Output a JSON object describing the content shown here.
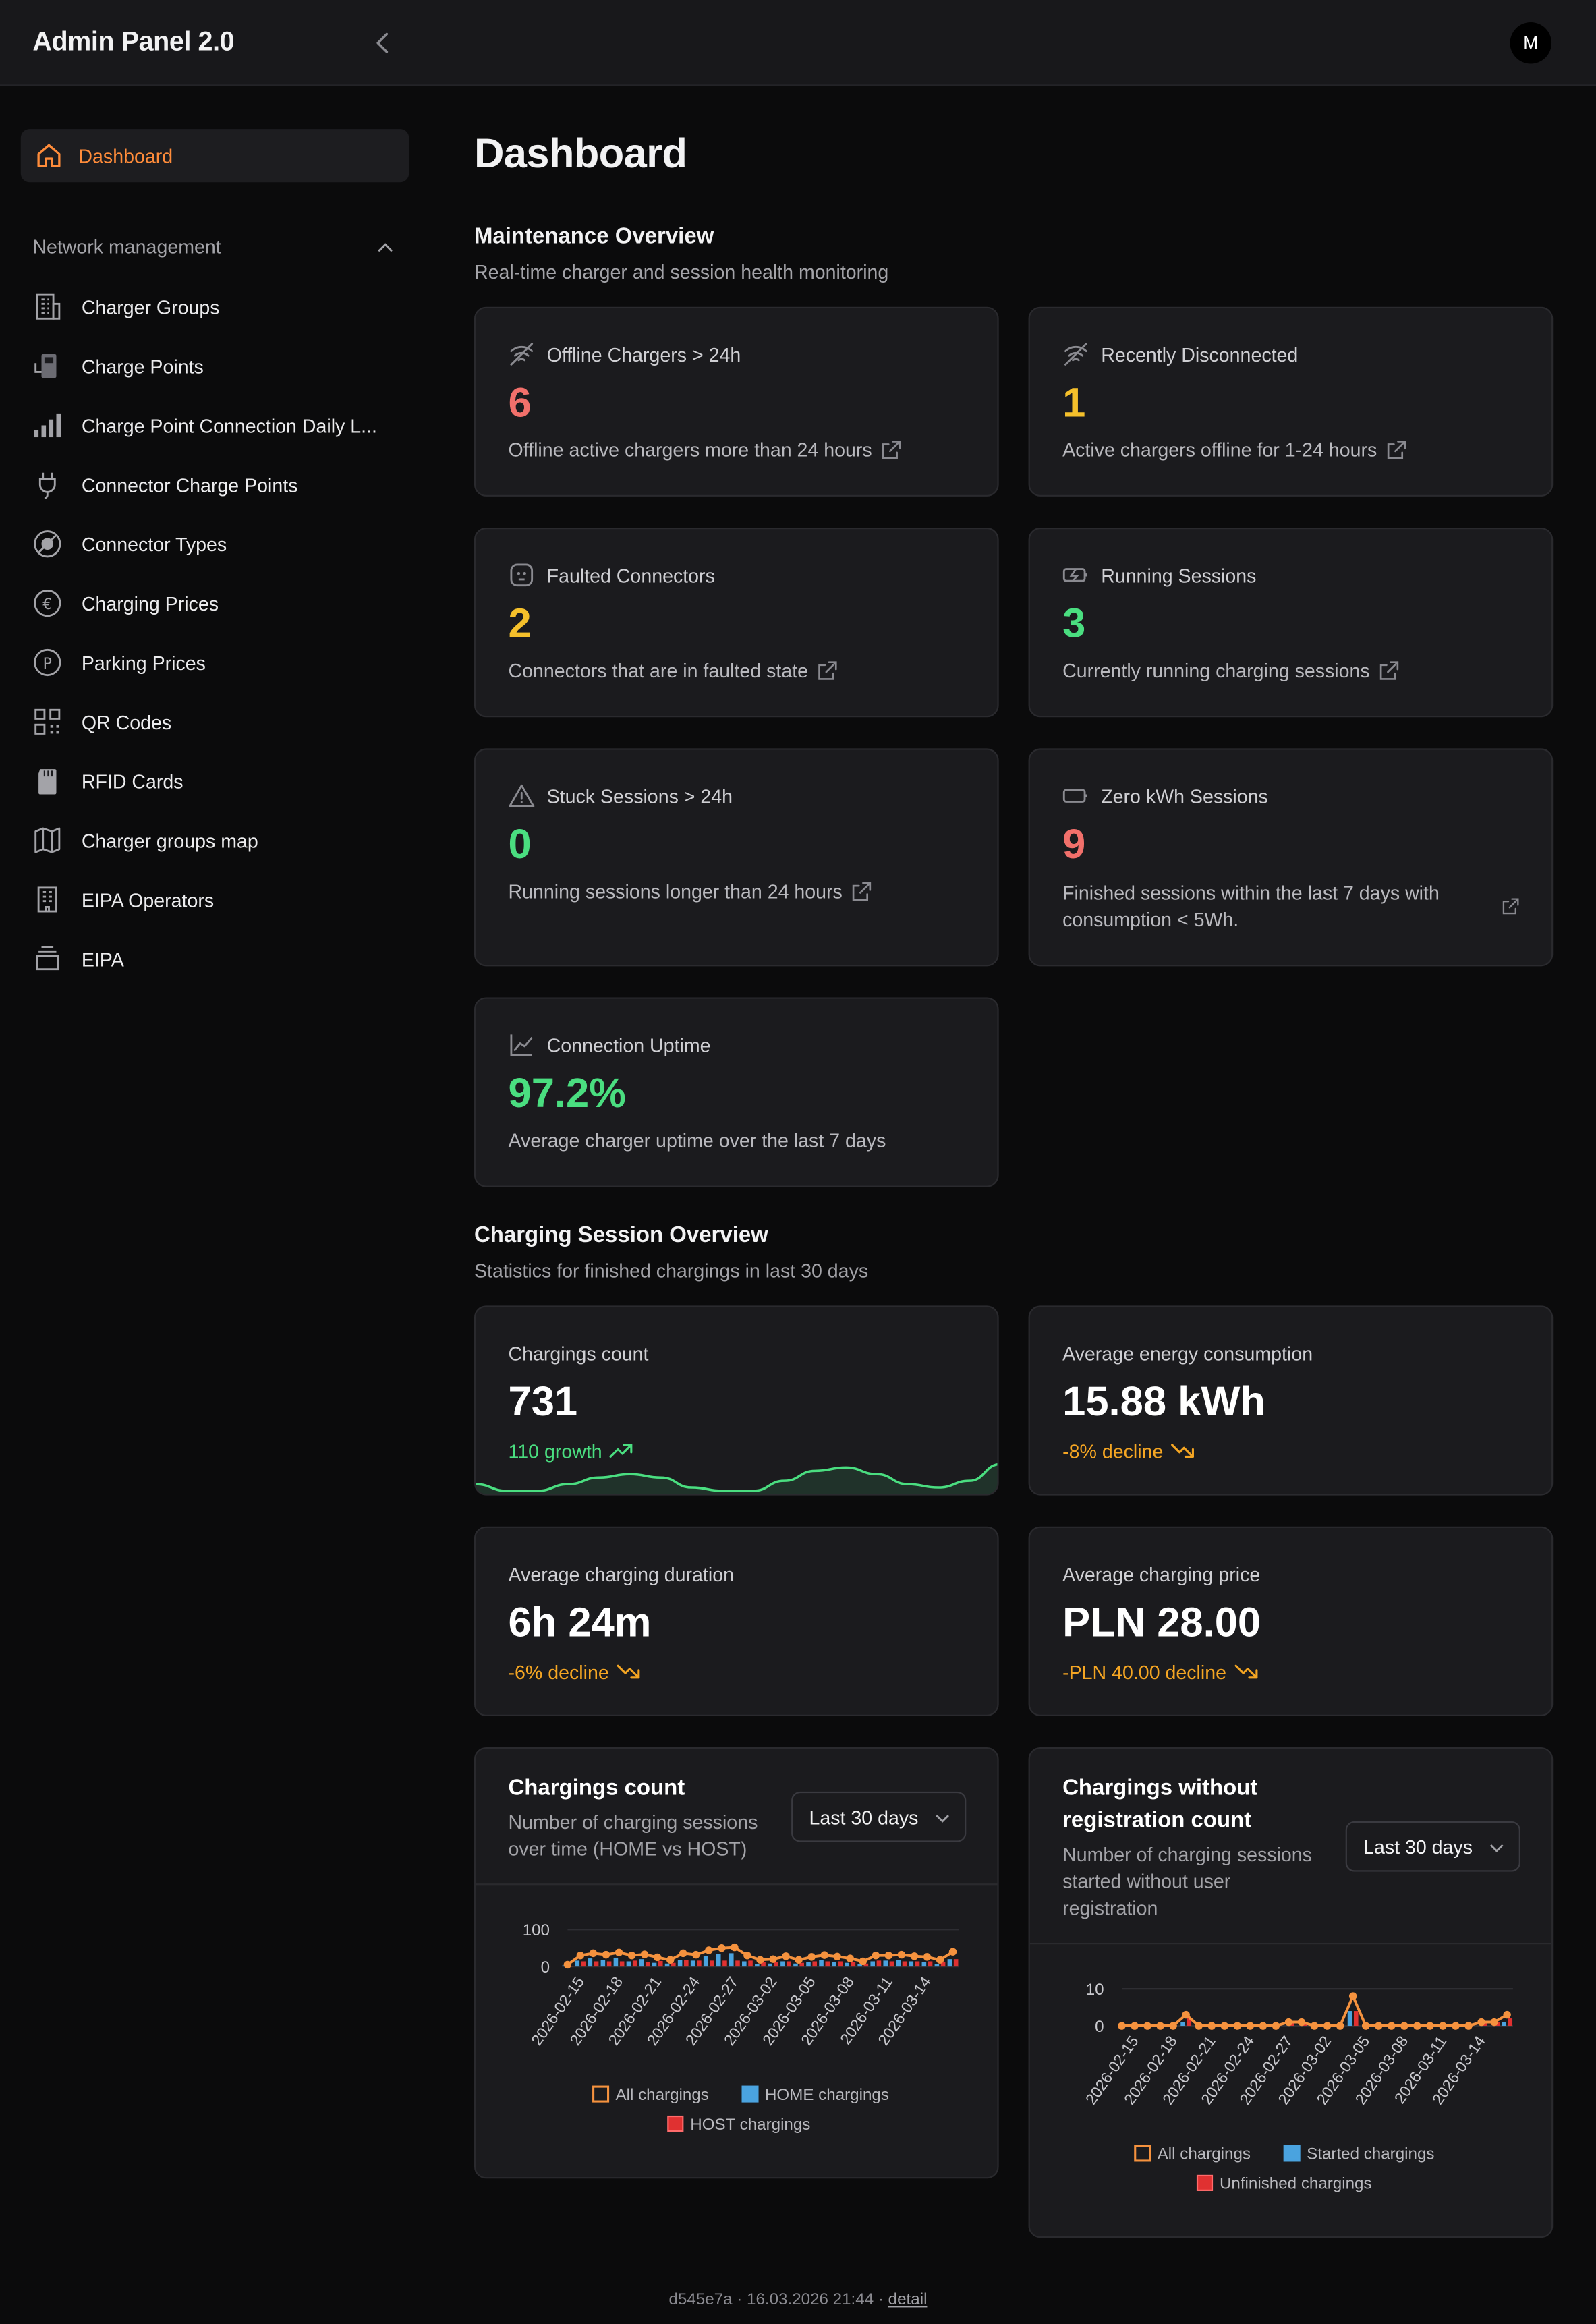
{
  "header": {
    "app_title": "Admin Panel 2.0",
    "avatar_initial": "M"
  },
  "sidebar": {
    "active": "Dashboard",
    "group_label": "Network management",
    "items": [
      {
        "label": "Charger Groups",
        "icon": "building-icon"
      },
      {
        "label": "Charge Points",
        "icon": "charge-point-icon"
      },
      {
        "label": "Charge Point Connection Daily L...",
        "icon": "signal-bars-icon"
      },
      {
        "label": "Connector Charge Points",
        "icon": "plug-icon"
      },
      {
        "label": "Connector Types",
        "icon": "connector-type-icon"
      },
      {
        "label": "Charging Prices",
        "icon": "euro-icon"
      },
      {
        "label": "Parking Prices",
        "icon": "parking-icon"
      },
      {
        "label": "QR Codes",
        "icon": "qr-code-icon"
      },
      {
        "label": "RFID Cards",
        "icon": "rfid-card-icon"
      },
      {
        "label": "Charger groups map",
        "icon": "map-icon"
      },
      {
        "label": "EIPA Operators",
        "icon": "building-icon"
      },
      {
        "label": "EIPA",
        "icon": "layers-icon"
      }
    ]
  },
  "page": {
    "title": "Dashboard"
  },
  "maintenance": {
    "title": "Maintenance Overview",
    "subtitle": "Real-time charger and session health monitoring",
    "cards": {
      "offline": {
        "title": "Offline Chargers > 24h",
        "value": "6",
        "desc": "Offline active chargers more than 24 hours",
        "color": "#f2706b"
      },
      "disconnected": {
        "title": "Recently Disconnected",
        "value": "1",
        "desc": "Active chargers offline for 1-24 hours",
        "color": "#f5c02b"
      },
      "faulted": {
        "title": "Faulted Connectors",
        "value": "2",
        "desc": "Connectors that are in faulted state",
        "color": "#f5c02b"
      },
      "running": {
        "title": "Running Sessions",
        "value": "3",
        "desc": "Currently running charging sessions",
        "color": "#4ade80"
      },
      "stuck": {
        "title": "Stuck Sessions > 24h",
        "value": "0",
        "desc": "Running sessions longer than 24 hours",
        "color": "#4ade80"
      },
      "zero_kwh": {
        "title": "Zero kWh Sessions",
        "value": "9",
        "desc_line1": "Finished sessions within the last 7 days with",
        "desc_line2": "consumption < 5Wh.",
        "color": "#f2706b"
      },
      "uptime": {
        "title": "Connection Uptime",
        "value": "97.2%",
        "desc": "Average charger uptime over the last 7 days",
        "color": "#4ade80"
      }
    }
  },
  "sessions": {
    "title": "Charging Session Overview",
    "subtitle": "Statistics for finished chargings in last 30 days",
    "stats": {
      "count": {
        "title": "Chargings count",
        "value": "731",
        "trend": "110 growth",
        "trend_color": "#4ade80"
      },
      "energy": {
        "title": "Average energy consumption",
        "value": "15.88 kWh",
        "trend": "-8% decline",
        "trend_color": "#f5a623"
      },
      "duration": {
        "title": "Average charging duration",
        "value": "6h 24m",
        "trend": "-6% decline",
        "trend_color": "#f5a623"
      },
      "price": {
        "title": "Average charging price",
        "value": "PLN 28.00",
        "trend": "-PLN 40.00 decline",
        "trend_color": "#f5a623"
      }
    }
  },
  "charts": {
    "count": {
      "title": "Chargings count",
      "subtitle_line1": "Number of charging sessions",
      "subtitle_line2": "over time (HOME vs HOST)",
      "range": "Last 30 days"
    },
    "unregistered": {
      "title_line1": "Chargings without",
      "title_line2": "registration count",
      "subtitle_line1": "Number of charging sessions",
      "subtitle_line2": "started without user",
      "subtitle_line3": "registration",
      "range": "Last 30 days"
    }
  },
  "chart_data": [
    {
      "type": "line",
      "title": "Chargings count",
      "x": [
        "2026-02-14",
        "2026-02-15",
        "2026-02-16",
        "2026-02-17",
        "2026-02-18",
        "2026-02-19",
        "2026-02-20",
        "2026-02-21",
        "2026-02-22",
        "2026-02-23",
        "2026-02-24",
        "2026-02-25",
        "2026-02-26",
        "2026-02-27",
        "2026-02-28",
        "2026-03-01",
        "2026-03-02",
        "2026-03-03",
        "2026-03-04",
        "2026-03-05",
        "2026-03-06",
        "2026-03-07",
        "2026-03-08",
        "2026-03-09",
        "2026-03-10",
        "2026-03-11",
        "2026-03-12",
        "2026-03-13",
        "2026-03-14",
        "2026-03-15",
        "2026-03-16"
      ],
      "tick_labels": [
        "2026-02-15",
        "2026-02-18",
        "2026-02-21",
        "2026-02-24",
        "2026-02-27",
        "2026-03-02",
        "2026-03-05",
        "2026-03-08",
        "2026-03-11",
        "2026-03-14"
      ],
      "series": [
        {
          "name": "All chargings",
          "color": "#f5923e",
          "type": "line",
          "values": [
            5,
            30,
            36,
            32,
            38,
            30,
            33,
            25,
            18,
            36,
            32,
            44,
            50,
            52,
            30,
            18,
            20,
            28,
            18,
            26,
            31,
            27,
            22,
            14,
            30,
            30,
            32,
            28,
            26,
            18,
            40
          ]
        },
        {
          "name": "HOME chargings",
          "color": "#4aa3df",
          "type": "bar",
          "values": [
            3,
            16,
            22,
            18,
            24,
            14,
            20,
            10,
            8,
            18,
            16,
            28,
            34,
            36,
            14,
            6,
            8,
            14,
            8,
            12,
            17,
            13,
            10,
            6,
            14,
            16,
            18,
            14,
            12,
            6,
            20
          ]
        },
        {
          "name": "HOST chargings",
          "color": "#e03131",
          "type": "bar",
          "values": [
            2,
            14,
            14,
            14,
            14,
            16,
            13,
            15,
            10,
            18,
            16,
            16,
            16,
            16,
            16,
            12,
            12,
            14,
            10,
            14,
            14,
            14,
            12,
            8,
            16,
            14,
            14,
            14,
            14,
            12,
            20
          ]
        }
      ],
      "y_ticks": [
        0,
        100
      ],
      "ylim": [
        0,
        100
      ]
    },
    {
      "type": "line",
      "title": "Chargings without registration count",
      "x": [
        "2026-02-14",
        "2026-02-15",
        "2026-02-16",
        "2026-02-17",
        "2026-02-18",
        "2026-02-19",
        "2026-02-20",
        "2026-02-21",
        "2026-02-22",
        "2026-02-23",
        "2026-02-24",
        "2026-02-25",
        "2026-02-26",
        "2026-02-27",
        "2026-02-28",
        "2026-03-01",
        "2026-03-02",
        "2026-03-03",
        "2026-03-04",
        "2026-03-05",
        "2026-03-06",
        "2026-03-07",
        "2026-03-08",
        "2026-03-09",
        "2026-03-10",
        "2026-03-11",
        "2026-03-12",
        "2026-03-13",
        "2026-03-14",
        "2026-03-15",
        "2026-03-16"
      ],
      "tick_labels": [
        "2026-02-15",
        "2026-02-18",
        "2026-02-21",
        "2026-02-24",
        "2026-02-27",
        "2026-03-02",
        "2026-03-05",
        "2026-03-08",
        "2026-03-11",
        "2026-03-14"
      ],
      "series": [
        {
          "name": "All chargings",
          "color": "#f5923e",
          "type": "line",
          "values": [
            0,
            0,
            0,
            0,
            0,
            3,
            0,
            0,
            0,
            0,
            0,
            0,
            0,
            1,
            1,
            0,
            0,
            0,
            8,
            0,
            0,
            0,
            0,
            0,
            0,
            0,
            0,
            0,
            1,
            1,
            3
          ]
        },
        {
          "name": "Started chargings",
          "color": "#4aa3df",
          "type": "bar",
          "values": [
            0,
            0,
            0,
            0,
            0,
            1,
            0,
            0,
            0,
            0,
            0,
            0,
            0,
            0,
            0,
            0,
            0,
            0,
            4,
            0,
            0,
            0,
            0,
            0,
            0,
            0,
            0,
            0,
            0,
            0,
            1
          ]
        },
        {
          "name": "Unfinished chargings",
          "color": "#e03131",
          "type": "bar",
          "values": [
            0,
            0,
            0,
            0,
            0,
            2,
            0,
            0,
            0,
            0,
            0,
            0,
            0,
            1,
            1,
            0,
            0,
            0,
            4,
            0,
            0,
            0,
            0,
            0,
            0,
            0,
            0,
            0,
            1,
            1,
            2
          ]
        }
      ],
      "y_ticks": [
        0,
        10
      ],
      "ylim": [
        0,
        10
      ]
    }
  ],
  "sparkline": {
    "series_name": "Chargings count trend",
    "values": [
      6,
      4,
      4,
      6,
      8,
      9,
      8,
      5,
      4,
      4,
      7,
      10,
      11,
      9,
      6,
      5,
      7,
      12
    ]
  },
  "footer": {
    "build": "d545e7a · 16.03.2026 21:44 ·",
    "link": "detail"
  }
}
